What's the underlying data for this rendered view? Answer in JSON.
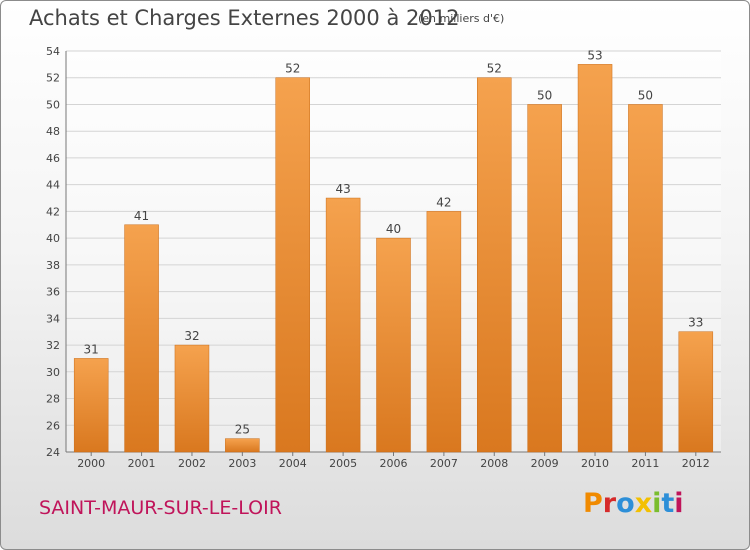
{
  "header": {
    "title": "Achats et Charges Externes 2000 à 2012",
    "subtitle": "(en milliers d'€)"
  },
  "footer": {
    "commune": "SAINT-MAUR-SUR-LE-LOIR",
    "brand": "Proxiti"
  },
  "colors": {
    "bar_light": "#f5a24e",
    "bar_dark": "#d9781f",
    "brand_letters": [
      "#f08a00",
      "#d62a2a",
      "#2d8fd8",
      "#f3c000",
      "#7abd2e",
      "#2d8fd8",
      "#c0145a"
    ]
  },
  "chart_data": {
    "type": "bar",
    "title": "Achats et Charges Externes 2000 à 2012",
    "subtitle": "(en milliers d'€)",
    "categories": [
      "2000",
      "2001",
      "2002",
      "2003",
      "2004",
      "2005",
      "2006",
      "2007",
      "2008",
      "2009",
      "2010",
      "2011",
      "2012"
    ],
    "values": [
      31,
      41,
      32,
      25,
      52,
      43,
      40,
      42,
      52,
      50,
      53,
      50,
      33
    ],
    "ylim": [
      24,
      54
    ],
    "yticks": [
      24,
      26,
      28,
      30,
      32,
      34,
      36,
      38,
      40,
      42,
      44,
      46,
      48,
      50,
      52,
      54
    ],
    "grid": true,
    "legend": "none"
  }
}
